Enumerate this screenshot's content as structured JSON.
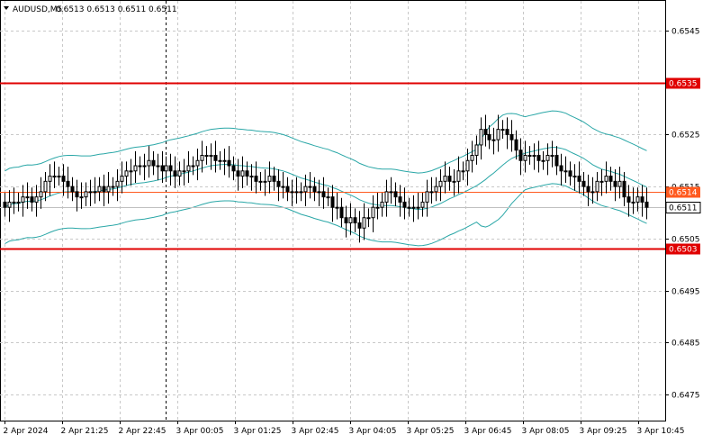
{
  "header": {
    "symbol": "AUDUSD,M5",
    "quote": "0.6513 0.6513 0.6511 0.6511"
  },
  "chart_data": {
    "type": "candlestick",
    "symbol": "AUDUSD",
    "timeframe": "M5",
    "ohlc_last": {
      "open": 0.6513,
      "high": 0.6513,
      "low": 0.6511,
      "close": 0.6511
    },
    "y_ticks": [
      "0.6545",
      "0.6525",
      "0.6515",
      "0.6505",
      "0.6495",
      "0.6485",
      "0.6475"
    ],
    "x_ticks": [
      "2 Apr 2024",
      "2 Apr 21:25",
      "2 Apr 22:45",
      "3 Apr 00:05",
      "3 Apr 01:25",
      "3 Apr 02:45",
      "3 Apr 04:05",
      "3 Apr 05:25",
      "3 Apr 06:45",
      "3 Apr 08:05",
      "3 Apr 09:25",
      "3 Apr 10:45"
    ],
    "levels": [
      {
        "value": 0.6535,
        "label": "0.6535",
        "color": "#e00000"
      },
      {
        "value": 0.6514,
        "label": "0.6514",
        "color": "#ff5a1f"
      },
      {
        "value": 0.6503,
        "label": "0.6503",
        "color": "#e00000"
      }
    ],
    "current_price": {
      "value": 0.6511,
      "label": "0.6511"
    },
    "ylim": [
      0.6469,
      0.6553
    ],
    "grid": true,
    "session_separator": "3 Apr 00:05",
    "bollinger_color": "#2aa7a7",
    "candles_close_series": [
      0.6511,
      0.6512,
      0.6512,
      0.6512,
      0.6513,
      0.6513,
      0.6512,
      0.6513,
      0.6514,
      0.6516,
      0.6517,
      0.6517,
      0.6517,
      0.6516,
      0.6515,
      0.6514,
      0.6513,
      0.6513,
      0.6514,
      0.6514,
      0.6514,
      0.6515,
      0.6514,
      0.6515,
      0.6515,
      0.6516,
      0.6517,
      0.6518,
      0.6518,
      0.6519,
      0.6519,
      0.6519,
      0.652,
      0.6519,
      0.6519,
      0.6518,
      0.6519,
      0.6518,
      0.6517,
      0.6518,
      0.6518,
      0.6519,
      0.6519,
      0.652,
      0.6521,
      0.6521,
      0.6521,
      0.652,
      0.652,
      0.652,
      0.6519,
      0.6518,
      0.6517,
      0.6518,
      0.6517,
      0.6517,
      0.6516,
      0.6516,
      0.6516,
      0.6517,
      0.6516,
      0.6515,
      0.6515,
      0.6514,
      0.6514,
      0.6514,
      0.6514,
      0.6515,
      0.6515,
      0.6514,
      0.6514,
      0.6513,
      0.6513,
      0.6511,
      0.6511,
      0.6509,
      0.6508,
      0.6509,
      0.6508,
      0.6507,
      0.6509,
      0.6509,
      0.6511,
      0.6511,
      0.6512,
      0.6514,
      0.6514,
      0.6513,
      0.6512,
      0.6511,
      0.6511,
      0.6511,
      0.6511,
      0.6512,
      0.6514,
      0.6514,
      0.6515,
      0.6516,
      0.6517,
      0.6516,
      0.6516,
      0.6518,
      0.6518,
      0.652,
      0.6521,
      0.6523,
      0.6526,
      0.6525,
      0.6524,
      0.6524,
      0.6526,
      0.6526,
      0.6525,
      0.6524,
      0.6522,
      0.652,
      0.6521,
      0.6521,
      0.6521,
      0.652,
      0.652,
      0.6521,
      0.6521,
      0.6519,
      0.6518,
      0.6518,
      0.6517,
      0.6517,
      0.6516,
      0.6515,
      0.6514,
      0.6514,
      0.6516,
      0.6516,
      0.6517,
      0.6516,
      0.6515,
      0.6516,
      0.6513,
      0.6512,
      0.6512,
      0.6513,
      0.6512,
      0.6511
    ]
  }
}
